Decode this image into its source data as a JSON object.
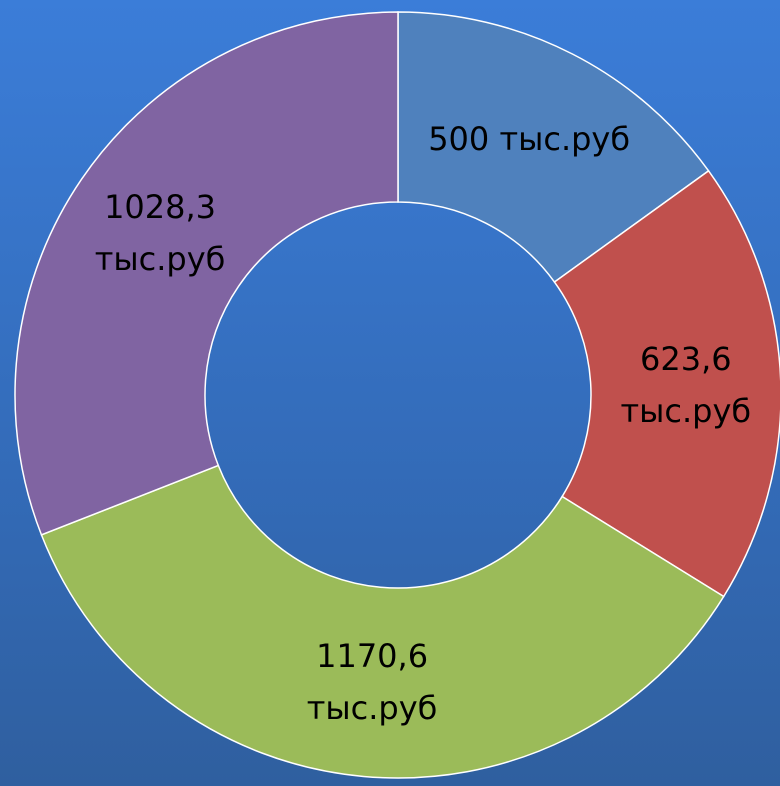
{
  "chart_data": {
    "type": "donut",
    "values": [
      500,
      623.6,
      1170.6,
      1028.3
    ],
    "value_labels": [
      "500 тыс.руб",
      "623,6 тыс.руб",
      "1170,6 тыс.руб",
      "1028,3 тыс.руб"
    ],
    "colors": [
      "#4f81bd",
      "#c0504d",
      "#9bbb59",
      "#8064a2"
    ]
  }
}
